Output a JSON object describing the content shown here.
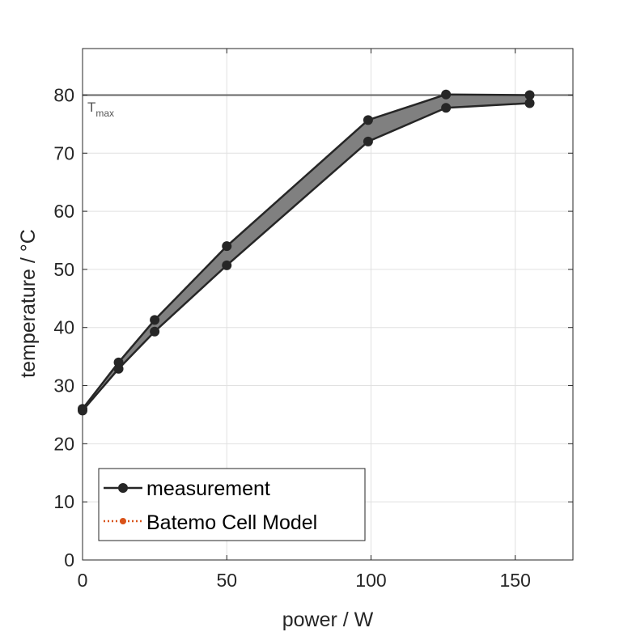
{
  "chart_data": {
    "type": "line",
    "xlabel": "power / W",
    "ylabel": "temperature / °C",
    "xlim": [
      0,
      170
    ],
    "ylim": [
      0,
      88
    ],
    "xticks": [
      0,
      50,
      100,
      150
    ],
    "yticks": [
      0,
      10,
      20,
      30,
      40,
      50,
      60,
      70,
      80
    ],
    "grid": true,
    "legend_position": "bottom-left",
    "series": [
      {
        "name": "measurement",
        "color": "#262626",
        "marker": "circle",
        "line_style": "solid",
        "band_fill": "#808080",
        "upper": {
          "x": [
            0,
            12.5,
            25,
            50,
            99,
            126,
            155
          ],
          "y": [
            26,
            34,
            41.3,
            54,
            75.7,
            80.1,
            80
          ]
        },
        "lower": {
          "x": [
            0,
            12.5,
            25,
            50,
            99,
            126,
            155
          ],
          "y": [
            25.7,
            32.9,
            39.3,
            50.7,
            72,
            77.8,
            78.6
          ]
        }
      },
      {
        "name": "Batemo Cell Model",
        "color": "#D95319",
        "marker": "circle",
        "line_style": "dotted",
        "x": [],
        "y": []
      }
    ],
    "reference_line": {
      "y": 80,
      "label_main": "T",
      "label_sub": "max",
      "color": "#666666"
    }
  }
}
